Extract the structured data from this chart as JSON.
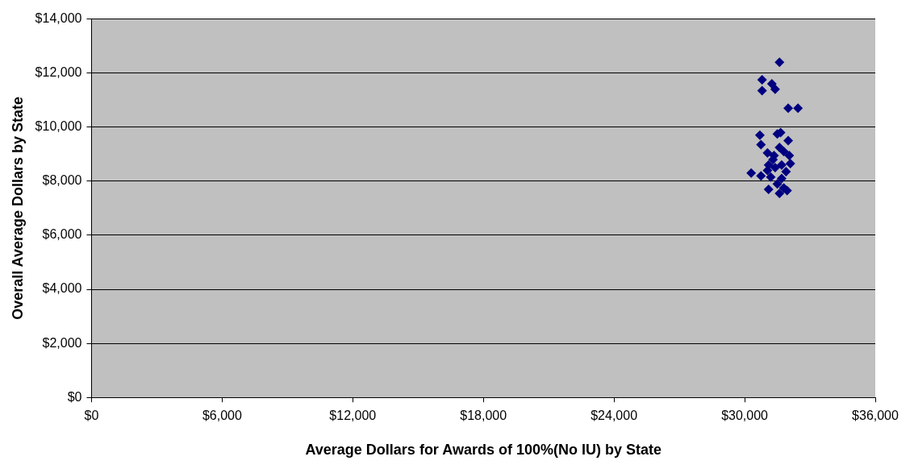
{
  "chart_data": {
    "type": "scatter",
    "xlabel": "Average Dollars for Awards of 100%(No IU) by State",
    "ylabel": "Overall Average Dollars by State",
    "x": [
      31600,
      30800,
      31250,
      30800,
      31400,
      32000,
      32450,
      30700,
      31500,
      31650,
      32000,
      30750,
      31800,
      31050,
      31350,
      32100,
      31700,
      31400,
      31050,
      30300,
      30750,
      31200,
      31700,
      31100,
      31600,
      31950,
      31800,
      31300,
      31600,
      31900,
      31500,
      32050,
      31100
    ],
    "series": [
      {
        "color": "#000080",
        "values": [
          12400,
          11750,
          11600,
          11350,
          11400,
          10700,
          10700,
          9700,
          9750,
          9800,
          9500,
          9350,
          9100,
          9050,
          8950,
          8650,
          8600,
          8500,
          8400,
          8300,
          8200,
          8150,
          8100,
          7700,
          7550,
          7650,
          7750,
          8800,
          9250,
          8350,
          7900,
          8950,
          8600
        ]
      }
    ],
    "xlim": [
      0,
      36000
    ],
    "ylim": [
      0,
      14000
    ],
    "xticks": [
      {
        "value": 0,
        "label": "$0"
      },
      {
        "value": 6000,
        "label": "$6,000"
      },
      {
        "value": 12000,
        "label": "$12,000"
      },
      {
        "value": 18000,
        "label": "$18,000"
      },
      {
        "value": 24000,
        "label": "$24,000"
      },
      {
        "value": 30000,
        "label": "$30,000"
      },
      {
        "value": 36000,
        "label": "$36,000"
      }
    ],
    "yticks": [
      {
        "value": 0,
        "label": "$0"
      },
      {
        "value": 2000,
        "label": "$2,000"
      },
      {
        "value": 4000,
        "label": "$4,000"
      },
      {
        "value": 6000,
        "label": "$6,000"
      },
      {
        "value": 8000,
        "label": "$8,000"
      },
      {
        "value": 10000,
        "label": "$10,000"
      },
      {
        "value": 12000,
        "label": "$12,000"
      },
      {
        "value": 14000,
        "label": "$14,000"
      }
    ],
    "grid": "y",
    "legend": false,
    "marker": "diamond"
  }
}
